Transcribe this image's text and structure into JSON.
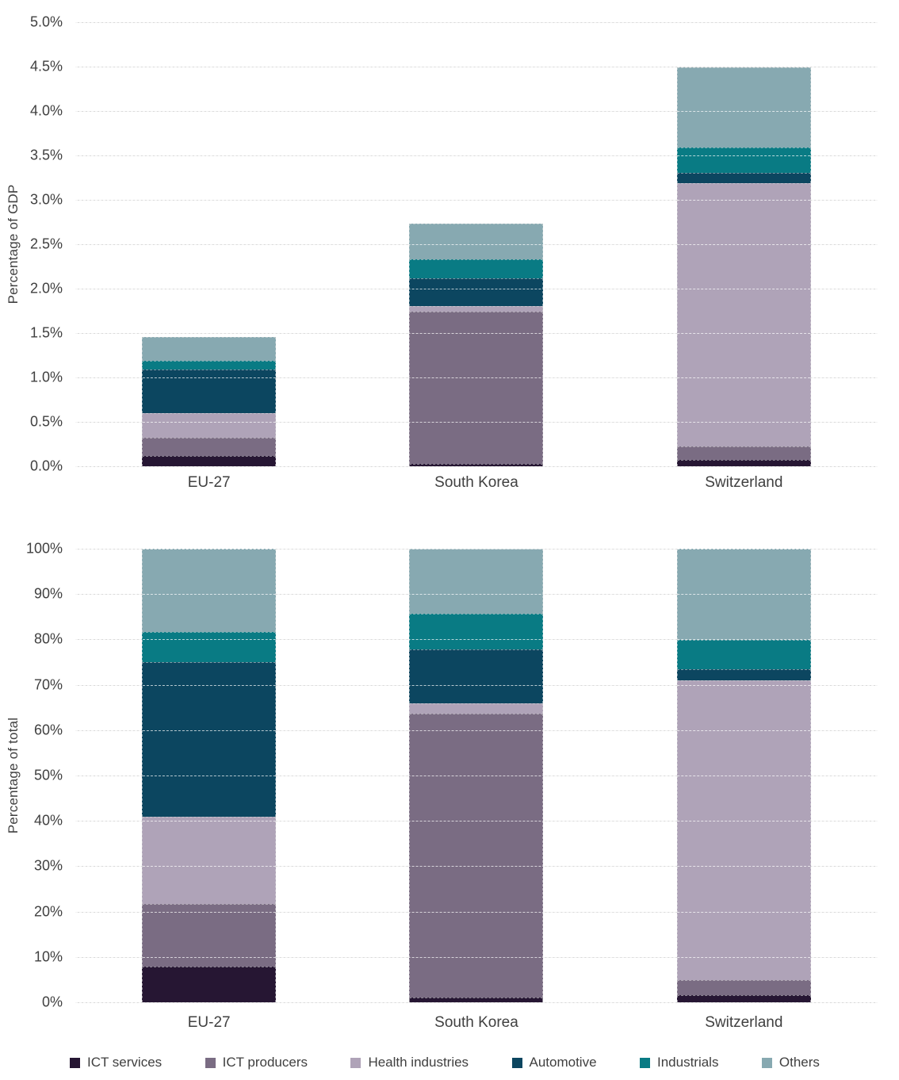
{
  "colors": {
    "ict_services": "#261633",
    "ict_producers": "#7a6c83",
    "health_industries": "#afa3b8",
    "automotive": "#0c4660",
    "industrials": "#097b84",
    "others": "#87a9b1",
    "gridline": "#d9d9d9",
    "text": "#404040",
    "background": "#ffffff"
  },
  "chart_data": [
    {
      "type": "bar",
      "stacked": true,
      "title": "",
      "xlabel": "",
      "ylabel": "Percentage of GDP",
      "ylim": [
        0,
        5
      ],
      "ymax": 5,
      "grid": true,
      "legend_position": "bottom",
      "categories": [
        "EU-27",
        "South Korea",
        "Switzerland"
      ],
      "yticks": [
        "0.0%",
        "0.5%",
        "1.0%",
        "1.5%",
        "2.0%",
        "2.5%",
        "3.0%",
        "3.5%",
        "4.0%",
        "4.5%",
        "5.0%"
      ],
      "series": [
        {
          "name": "ICT services",
          "color": "#261633",
          "values": [
            0.12,
            0.03,
            0.07
          ]
        },
        {
          "name": "ICT producers",
          "color": "#7a6c83",
          "values": [
            0.2,
            1.71,
            0.15
          ]
        },
        {
          "name": "Health industries",
          "color": "#afa3b8",
          "values": [
            0.28,
            0.06,
            2.97
          ]
        },
        {
          "name": "Automotive",
          "color": "#0c4660",
          "values": [
            0.49,
            0.32,
            0.11
          ]
        },
        {
          "name": "Industrials",
          "color": "#097b84",
          "values": [
            0.1,
            0.21,
            0.29
          ]
        },
        {
          "name": "Others",
          "color": "#87a9b1",
          "values": [
            0.27,
            0.4,
            0.9
          ]
        }
      ],
      "totals": [
        1.46,
        2.73,
        4.49
      ]
    },
    {
      "type": "bar",
      "stacked": true,
      "title": "",
      "xlabel": "",
      "ylabel": "Percentage of total",
      "ylim": [
        0,
        100
      ],
      "ymax": 100,
      "grid": true,
      "legend_position": "bottom",
      "categories": [
        "EU-27",
        "South Korea",
        "Switzerland"
      ],
      "yticks": [
        "0%",
        "10%",
        "20%",
        "30%",
        "40%",
        "50%",
        "60%",
        "70%",
        "80%",
        "90%",
        "100%"
      ],
      "series": [
        {
          "name": "ICT services",
          "color": "#261633",
          "values": [
            7.8,
            1.1,
            1.5
          ]
        },
        {
          "name": "ICT producers",
          "color": "#7a6c83",
          "values": [
            13.9,
            62.6,
            3.4
          ]
        },
        {
          "name": "Health industries",
          "color": "#afa3b8",
          "values": [
            19.3,
            2.3,
            66.1
          ]
        },
        {
          "name": "Automotive",
          "color": "#0c4660",
          "values": [
            34.0,
            11.8,
            2.5
          ]
        },
        {
          "name": "Industrials",
          "color": "#097b84",
          "values": [
            6.6,
            7.8,
            6.4
          ]
        },
        {
          "name": "Others",
          "color": "#87a9b1",
          "values": [
            18.4,
            14.4,
            20.1
          ]
        }
      ],
      "totals": [
        100,
        100,
        100
      ]
    }
  ],
  "legend": {
    "items": [
      {
        "label": "ICT services",
        "color": "#261633"
      },
      {
        "label": "ICT producers",
        "color": "#7a6c83"
      },
      {
        "label": "Health industries",
        "color": "#afa3b8"
      },
      {
        "label": "Automotive",
        "color": "#0c4660"
      },
      {
        "label": "Industrials",
        "color": "#097b84"
      },
      {
        "label": "Others",
        "color": "#87a9b1"
      }
    ]
  }
}
